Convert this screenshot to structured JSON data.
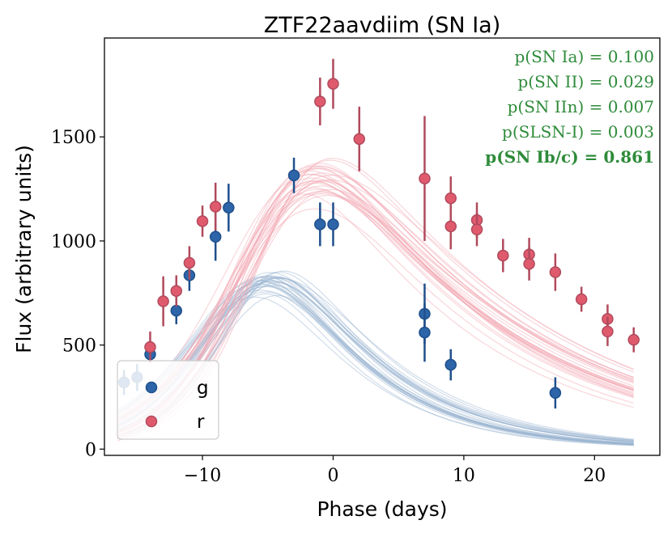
{
  "chart_data": {
    "type": "scatter",
    "title": "ZTF22aavdiim (SN Ia)",
    "xlabel": "Phase (days)",
    "ylabel": "Flux (arbitrary units)",
    "xlim": [
      -17.5,
      25
    ],
    "ylim": [
      -30,
      1975
    ],
    "xticks": [
      -10,
      0,
      10,
      20
    ],
    "xtick_labels": [
      "−10",
      "0",
      "10",
      "20"
    ],
    "yticks": [
      0,
      500,
      1000,
      1500
    ],
    "ytick_labels": [
      "0",
      "500",
      "1000",
      "1500"
    ],
    "legend_position": "lower-left",
    "colors": {
      "g": "#1f4f8c",
      "r": "#e05a6e",
      "g_model": "#9ab3d1",
      "r_model": "#f2a3b0",
      "annotation": "#2e8b3a"
    },
    "series": [
      {
        "name": "g",
        "points": [
          {
            "x": -16,
            "y": 320,
            "err": 60
          },
          {
            "x": -15,
            "y": 345,
            "err": 65
          },
          {
            "x": -14,
            "y": 455,
            "err": 40
          },
          {
            "x": -12,
            "y": 665,
            "err": 65
          },
          {
            "x": -11,
            "y": 835,
            "err": 75
          },
          {
            "x": -9,
            "y": 1020,
            "err": 115
          },
          {
            "x": -8,
            "y": 1160,
            "err": 115
          },
          {
            "x": -3,
            "y": 1315,
            "err": 85
          },
          {
            "x": -1,
            "y": 1080,
            "err": 105
          },
          {
            "x": 0,
            "y": 1080,
            "err": 105
          },
          {
            "x": 7,
            "y": 650,
            "err": 145
          },
          {
            "x": 7,
            "y": 560,
            "err": 140
          },
          {
            "x": 9,
            "y": 405,
            "err": 75
          },
          {
            "x": 17,
            "y": 270,
            "err": 75
          }
        ],
        "model_curves": 30
      },
      {
        "name": "r",
        "points": [
          {
            "x": -14,
            "y": 490,
            "err": 75
          },
          {
            "x": -13,
            "y": 710,
            "err": 120
          },
          {
            "x": -12,
            "y": 760,
            "err": 75
          },
          {
            "x": -11,
            "y": 895,
            "err": 80
          },
          {
            "x": -10,
            "y": 1095,
            "err": 75
          },
          {
            "x": -9,
            "y": 1165,
            "err": 115
          },
          {
            "x": -1,
            "y": 1670,
            "err": 115
          },
          {
            "x": 0,
            "y": 1755,
            "err": 120
          },
          {
            "x": 2,
            "y": 1490,
            "err": 155
          },
          {
            "x": 7,
            "y": 1300,
            "err": 300
          },
          {
            "x": 9,
            "y": 1205,
            "err": 105
          },
          {
            "x": 9,
            "y": 1070,
            "err": 110
          },
          {
            "x": 11,
            "y": 1100,
            "err": 85
          },
          {
            "x": 11,
            "y": 1055,
            "err": 80
          },
          {
            "x": 13,
            "y": 930,
            "err": 80
          },
          {
            "x": 15,
            "y": 935,
            "err": 80
          },
          {
            "x": 15,
            "y": 890,
            "err": 80
          },
          {
            "x": 17,
            "y": 850,
            "err": 90
          },
          {
            "x": 19,
            "y": 720,
            "err": 60
          },
          {
            "x": 21,
            "y": 625,
            "err": 70
          },
          {
            "x": 21,
            "y": 565,
            "err": 70
          },
          {
            "x": 23,
            "y": 525,
            "err": 60
          }
        ],
        "model_curves": 30
      }
    ],
    "annotations": [
      {
        "text": "p(SN Ia) = 0.100",
        "bold": false
      },
      {
        "text": "p(SN II) = 0.029",
        "bold": false
      },
      {
        "text": "p(SN IIn) = 0.007",
        "bold": false
      },
      {
        "text": "p(SLSN-I) = 0.003",
        "bold": false
      },
      {
        "text": "p(SN Ib/c) = 0.861",
        "bold": true
      }
    ]
  }
}
